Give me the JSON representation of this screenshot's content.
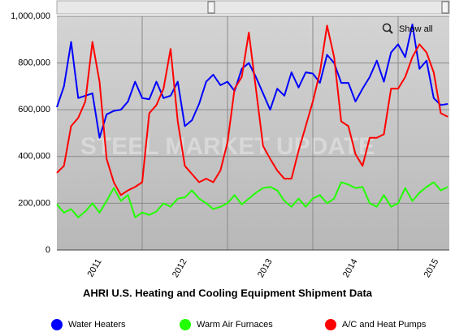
{
  "chart_data": {
    "type": "line",
    "title": "AHRI U.S. Heating and Cooling Equipment Shipment Data",
    "watermark": "STEEL MARKET UPDATE",
    "button": "Show all",
    "x": [
      2011,
      2011.083,
      2011.167,
      2011.25,
      2011.333,
      2011.417,
      2011.5,
      2011.583,
      2011.667,
      2011.75,
      2011.833,
      2011.917,
      2012,
      2012.083,
      2012.167,
      2012.25,
      2012.333,
      2012.417,
      2012.5,
      2012.583,
      2012.667,
      2012.75,
      2012.833,
      2012.917,
      2013,
      2013.083,
      2013.167,
      2013.25,
      2013.333,
      2013.417,
      2013.5,
      2013.583,
      2013.667,
      2013.75,
      2013.833,
      2013.917,
      2014,
      2014.083,
      2014.167,
      2014.25,
      2014.333,
      2014.417,
      2014.5,
      2014.583,
      2014.667,
      2014.75,
      2014.833,
      2014.917,
      2015,
      2015.083,
      2015.167,
      2015.25,
      2015.333,
      2015.417,
      2015.5,
      2015.583
    ],
    "series": [
      {
        "name": "Water Heaters",
        "color": "#0000ff",
        "values": [
          611000,
          700000,
          890000,
          650000,
          660000,
          670000,
          480000,
          580000,
          595000,
          600000,
          635000,
          720000,
          650000,
          645000,
          720000,
          650000,
          660000,
          720000,
          530000,
          555000,
          625000,
          720000,
          750000,
          705000,
          720000,
          680000,
          775000,
          800000,
          740000,
          670000,
          600000,
          690000,
          660000,
          760000,
          695000,
          760000,
          755000,
          715000,
          835000,
          800000,
          715000,
          715000,
          635000,
          690000,
          740000,
          810000,
          720000,
          845000,
          880000,
          825000,
          965000,
          775000,
          810000,
          650000,
          620000,
          625000
        ]
      },
      {
        "name": "Warm Air Furnaces",
        "color": "#22ff00",
        "values": [
          195000,
          160000,
          175000,
          140000,
          165000,
          200000,
          160000,
          210000,
          265000,
          210000,
          235000,
          140000,
          160000,
          150000,
          165000,
          200000,
          185000,
          220000,
          225000,
          255000,
          220000,
          200000,
          175000,
          185000,
          200000,
          235000,
          195000,
          220000,
          245000,
          265000,
          270000,
          255000,
          210000,
          185000,
          220000,
          185000,
          220000,
          235000,
          200000,
          220000,
          290000,
          280000,
          265000,
          270000,
          200000,
          185000,
          235000,
          185000,
          200000,
          265000,
          210000,
          245000,
          270000,
          290000,
          255000,
          270000
        ]
      },
      {
        "name": "A/C and Heat Pumps",
        "color": "#ff0000",
        "values": [
          330000,
          360000,
          530000,
          565000,
          635000,
          890000,
          720000,
          390000,
          290000,
          235000,
          255000,
          270000,
          290000,
          585000,
          620000,
          690000,
          860000,
          550000,
          360000,
          325000,
          290000,
          305000,
          290000,
          340000,
          460000,
          690000,
          740000,
          930000,
          690000,
          445000,
          390000,
          340000,
          305000,
          305000,
          425000,
          530000,
          635000,
          760000,
          960000,
          825000,
          550000,
          530000,
          410000,
          360000,
          480000,
          480000,
          495000,
          690000,
          690000,
          740000,
          825000,
          880000,
          845000,
          760000,
          585000,
          570000
        ]
      }
    ],
    "xlim": [
      2011,
      2015.6
    ],
    "xticks": [
      {
        "value": 2011.5,
        "label": "2011"
      },
      {
        "value": 2012.5,
        "label": "2012"
      },
      {
        "value": 2013.5,
        "label": "2013"
      },
      {
        "value": 2014.5,
        "label": "2014"
      },
      {
        "value": 2015.45,
        "label": "2015"
      }
    ],
    "xgrid": [
      2012,
      2013,
      2014,
      2015
    ],
    "ylim": [
      0,
      1000000
    ],
    "yticks": [
      0,
      {
        "value": 200000,
        "label": "200,000"
      },
      {
        "value": 400000,
        "label": "400,000"
      },
      {
        "value": 600000,
        "label": "600,000"
      },
      {
        "value": 800000,
        "label": "800,000"
      },
      {
        "value": 1000000,
        "label": "1,000,000"
      }
    ],
    "grid": true
  }
}
